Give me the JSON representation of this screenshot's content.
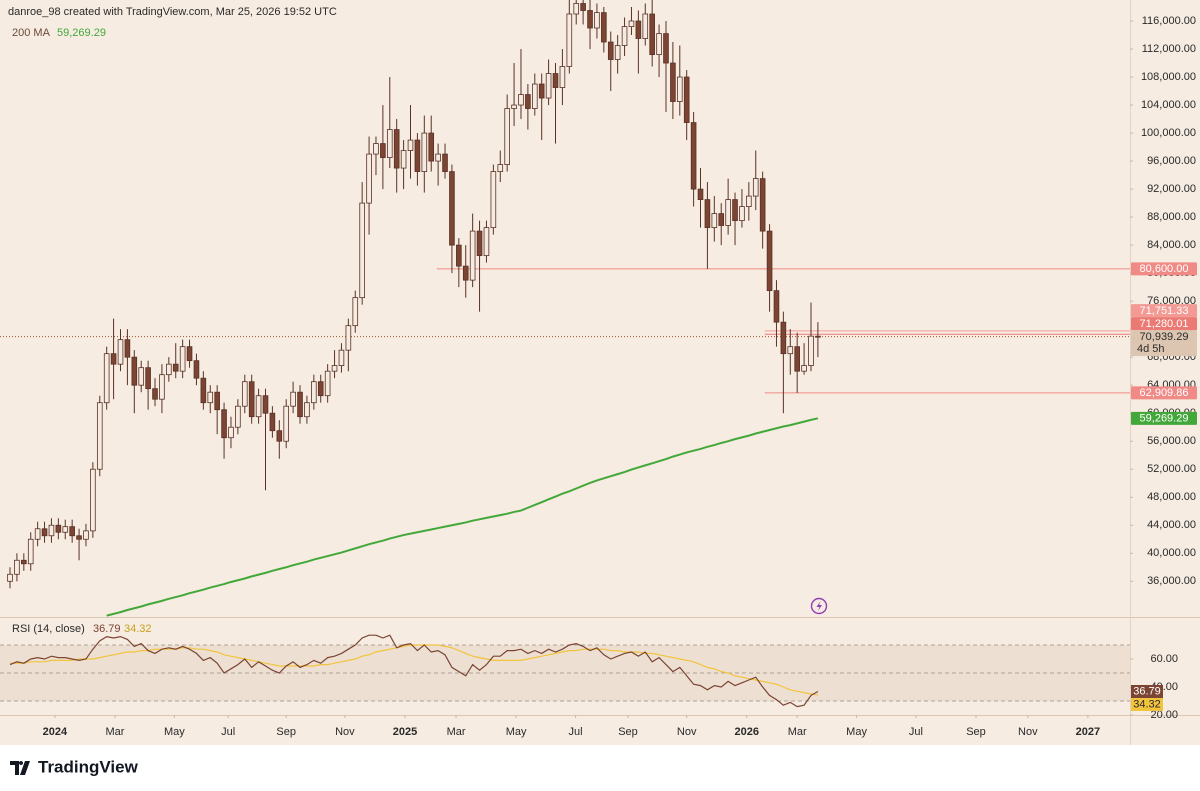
{
  "chart_data": {
    "type": "candlestick",
    "attribution": "danroe_98 created with TradingView.com, Mar 25, 2026 19:52 UTC",
    "categories": [
      null,
      null,
      null,
      null,
      null,
      null,
      null,
      null,
      null,
      null,
      null,
      null,
      null,
      null,
      null,
      null,
      null,
      null,
      null,
      null,
      null,
      null,
      null,
      null,
      null,
      null,
      null,
      null,
      null,
      null,
      null,
      null,
      null,
      null,
      null,
      null,
      null,
      null,
      null,
      null,
      null,
      null,
      null,
      null,
      null,
      null,
      null,
      null,
      null,
      null,
      null,
      null,
      null,
      null,
      null,
      null,
      null,
      null,
      null,
      null,
      null,
      null,
      null,
      null,
      null,
      null,
      null,
      null,
      null,
      null,
      null,
      null,
      null,
      null,
      null,
      null,
      null,
      null,
      null,
      null,
      null,
      null,
      null,
      null,
      null,
      null,
      null,
      null,
      null,
      null,
      null,
      null,
      null,
      null,
      null,
      null,
      null,
      null,
      null,
      null,
      null,
      null,
      null,
      null,
      null,
      null,
      null,
      null,
      null,
      null,
      null,
      null,
      null,
      null,
      null,
      null,
      null,
      null
    ],
    "xlim": [
      -1.45,
      162.2
    ],
    "xticks": [
      {
        "value": 6.5,
        "label": "2024"
      },
      {
        "value": 15.2,
        "label": "Mar"
      },
      {
        "value": 23.8,
        "label": "May"
      },
      {
        "value": 31.6,
        "label": "Jul"
      },
      {
        "value": 40.0,
        "label": "Sep"
      },
      {
        "value": 48.5,
        "label": "Nov"
      },
      {
        "value": 57.2,
        "label": "2025"
      },
      {
        "value": 64.6,
        "label": "Mar"
      },
      {
        "value": 73.3,
        "label": "May"
      },
      {
        "value": 81.9,
        "label": "Jul"
      },
      {
        "value": 89.5,
        "label": "Sep"
      },
      {
        "value": 98.0,
        "label": "Nov"
      },
      {
        "value": 106.7,
        "label": "2026"
      },
      {
        "value": 114.0,
        "label": "Mar"
      },
      {
        "value": 122.6,
        "label": "May"
      },
      {
        "value": 131.2,
        "label": "Jul"
      },
      {
        "value": 139.9,
        "label": "Sep"
      },
      {
        "value": 147.4,
        "label": "Nov"
      },
      {
        "value": 156.1,
        "label": "2027"
      }
    ],
    "ylim": [
      30900,
      119000
    ],
    "yticks": [
      {
        "value": 36000,
        "label": "36,000.00"
      },
      {
        "value": 40000,
        "label": "40,000.00"
      },
      {
        "value": 44000,
        "label": "44,000.00"
      },
      {
        "value": 48000,
        "label": "48,000.00"
      },
      {
        "value": 52000,
        "label": "52,000.00"
      },
      {
        "value": 56000,
        "label": "56,000.00"
      },
      {
        "value": 60000,
        "label": "60,000.00"
      },
      {
        "value": 64000,
        "label": "64,000.00"
      },
      {
        "value": 68000,
        "label": "68,000.00"
      },
      {
        "value": 72000,
        "label": "72,000.00"
      },
      {
        "value": 76000,
        "label": "76,000.00"
      },
      {
        "value": 80000,
        "label": "80,000.00"
      },
      {
        "value": 84000,
        "label": "84,000.00"
      },
      {
        "value": 88000,
        "label": "88,000.00"
      },
      {
        "value": 92000,
        "label": "92,000.00"
      },
      {
        "value": 96000,
        "label": "96,000.00"
      },
      {
        "value": 100000,
        "label": "100,000.00"
      },
      {
        "value": 104000,
        "label": "104,000.00"
      },
      {
        "value": 108000,
        "label": "108,000.00"
      },
      {
        "value": 112000,
        "label": "112,000.00"
      },
      {
        "value": 116000,
        "label": "116,000.00"
      }
    ],
    "grid": false,
    "up_color": "#f5ebe0",
    "down_color": "#7b4433",
    "wick_color": "#5a3126",
    "open": [
      36000,
      37000,
      39000,
      38500,
      42000,
      43500,
      42500,
      44000,
      43000,
      43800,
      42500,
      42000,
      43200,
      52000,
      61500,
      68500,
      67000,
      70500,
      68000,
      64000,
      66500,
      63500,
      62000,
      65500,
      67000,
      66000,
      69500,
      67500,
      65000,
      61500,
      63000,
      60500,
      56500,
      58000,
      61000,
      64500,
      59500,
      62500,
      60000,
      57500,
      56000,
      61000,
      63000,
      59500,
      61500,
      64500,
      62500,
      66000,
      66800,
      69000,
      72500,
      76500,
      90000,
      97000,
      98500,
      96500,
      100500,
      95000,
      97500,
      99000,
      94500,
      100000,
      96000,
      97000,
      94500,
      84000,
      81000,
      79000,
      86000,
      82500,
      86500,
      94500,
      95500,
      103500,
      104000,
      105500,
      103500,
      107000,
      105000,
      108500,
      106500,
      109500,
      117000,
      118500,
      117500,
      115000,
      117200,
      113000,
      110500,
      112500,
      115200,
      116000,
      113500,
      117000,
      111200,
      114200,
      110000,
      104500,
      108000,
      101500,
      92000,
      90500,
      86500,
      88500,
      86800,
      90500,
      87500,
      89500,
      91000,
      93500,
      86000,
      77500,
      73000,
      68500,
      69500,
      66000,
      66800,
      71000
    ],
    "high": [
      38000,
      40000,
      40000,
      43000,
      44500,
      44500,
      45000,
      45000,
      44800,
      44800,
      43500,
      44200,
      53000,
      62500,
      69500,
      73500,
      72000,
      72000,
      69000,
      67500,
      67500,
      65000,
      67000,
      68000,
      70000,
      70500,
      70500,
      68500,
      66000,
      64000,
      64000,
      61500,
      59500,
      62000,
      65500,
      65500,
      63500,
      63500,
      61000,
      59000,
      62000,
      64500,
      64000,
      62500,
      65500,
      65500,
      67000,
      69000,
      70000,
      73500,
      77500,
      93000,
      99500,
      99500,
      104000,
      108000,
      102000,
      99000,
      104000,
      100000,
      102500,
      102500,
      98500,
      98500,
      95500,
      85000,
      84000,
      88500,
      87500,
      87500,
      95500,
      97500,
      105500,
      110000,
      112000,
      107000,
      108500,
      108500,
      110500,
      110000,
      112000,
      119000,
      120000,
      120000,
      119000,
      118500,
      118000,
      114500,
      114000,
      116500,
      118000,
      117500,
      118500,
      120000,
      115500,
      116000,
      113000,
      112500,
      109000,
      103000,
      95000,
      93000,
      91000,
      90000,
      93500,
      91500,
      92000,
      93000,
      97500,
      94500,
      87000,
      79000,
      74500,
      72000,
      71500,
      70000,
      75800,
      73000
    ],
    "low": [
      35000,
      36000,
      37500,
      37500,
      41000,
      41500,
      41500,
      42000,
      42000,
      41500,
      39000,
      41000,
      42200,
      51000,
      60500,
      62000,
      66000,
      64000,
      60000,
      63000,
      60500,
      61000,
      60000,
      64500,
      65000,
      65000,
      66500,
      64000,
      60500,
      60000,
      57000,
      53500,
      55000,
      57000,
      60000,
      58500,
      58500,
      49000,
      56500,
      53500,
      55000,
      60000,
      58500,
      58500,
      60500,
      61500,
      61500,
      65000,
      65800,
      66000,
      71500,
      75500,
      85500,
      94000,
      92000,
      95000,
      91500,
      92000,
      93500,
      92500,
      91500,
      94500,
      92500,
      93500,
      80000,
      78000,
      76500,
      78000,
      74500,
      81500,
      85500,
      93000,
      94500,
      101000,
      102000,
      100500,
      102500,
      99000,
      104000,
      98500,
      104000,
      108500,
      115500,
      115500,
      112000,
      113500,
      111500,
      106000,
      108500,
      111000,
      114000,
      108500,
      112500,
      109500,
      108000,
      103000,
      102000,
      102500,
      99000,
      89500,
      86500,
      80600,
      84500,
      84000,
      85500,
      84000,
      86500,
      87500,
      89000,
      83500,
      74500,
      69500,
      60000,
      65500,
      62909.86,
      65500,
      66000,
      68000
    ],
    "close": [
      37000,
      39000,
      38500,
      42000,
      43500,
      42500,
      44000,
      43000,
      43800,
      42500,
      42000,
      43200,
      52000,
      61500,
      68500,
      67000,
      70500,
      68000,
      64000,
      66500,
      63500,
      62000,
      65500,
      67000,
      66000,
      69500,
      67500,
      65000,
      61500,
      63000,
      60500,
      56500,
      58000,
      61000,
      64500,
      59500,
      62500,
      60000,
      57500,
      56000,
      61000,
      63000,
      59500,
      61500,
      64500,
      62500,
      66000,
      66800,
      69000,
      72500,
      76500,
      90000,
      97000,
      98500,
      96500,
      100500,
      95000,
      97500,
      99000,
      94500,
      100000,
      96000,
      97000,
      94500,
      84000,
      81000,
      79000,
      86000,
      82500,
      86500,
      94500,
      95500,
      103500,
      104000,
      105500,
      103500,
      107000,
      105000,
      108500,
      106500,
      109500,
      117000,
      118500,
      117500,
      115000,
      117200,
      113000,
      110500,
      112500,
      115200,
      116000,
      113500,
      117000,
      111200,
      114200,
      110000,
      104500,
      108000,
      101500,
      92000,
      90500,
      86500,
      88500,
      86800,
      90500,
      87500,
      89500,
      91000,
      93500,
      86000,
      77500,
      73000,
      68500,
      69500,
      66000,
      66800,
      71000,
      70939.29
    ],
    "current": {
      "value": 70939.29,
      "label": "70,939.29",
      "countdown": "4d 5h",
      "color": "#a0522d"
    },
    "ma": {
      "name": "200 MA",
      "color": "#43a83a",
      "last": {
        "value": 59269.29,
        "label": "59,269.29"
      },
      "values": [
        null,
        null,
        null,
        null,
        null,
        null,
        null,
        null,
        null,
        null,
        null,
        null,
        null,
        null,
        31100,
        31350,
        31600,
        31900,
        32150,
        32400,
        32700,
        32950,
        33200,
        33500,
        33750,
        34000,
        34300,
        34550,
        34800,
        35100,
        35350,
        35600,
        35900,
        36150,
        36400,
        36700,
        36950,
        37200,
        37500,
        37750,
        38000,
        38300,
        38550,
        38800,
        39100,
        39350,
        39600,
        39850,
        40100,
        40400,
        40700,
        41000,
        41300,
        41550,
        41800,
        42100,
        42350,
        42600,
        42800,
        43000,
        43200,
        43400,
        43600,
        43800,
        44000,
        44200,
        44400,
        44650,
        44850,
        45050,
        45250,
        45450,
        45650,
        45900,
        46100,
        46500,
        46900,
        47300,
        47700,
        48100,
        48500,
        48850,
        49250,
        49650,
        50050,
        50400,
        50700,
        51000,
        51300,
        51600,
        51950,
        52250,
        52550,
        52850,
        53150,
        53450,
        53800,
        54100,
        54400,
        54650,
        54900,
        55200,
        55450,
        55750,
        56000,
        56300,
        56550,
        56800,
        57100,
        57350,
        57600,
        57850,
        58100,
        58300,
        58550,
        58800,
        59050,
        59269.29
      ]
    },
    "levels": [
      {
        "value": 80600,
        "label": "80,600.00",
        "color": "#f08a86",
        "from": 61.8
      },
      {
        "value": 71751.33,
        "label": "71,751.33",
        "color": "#f39a95",
        "from": 109.3
      },
      {
        "value": 71280.01,
        "label": "71,280.01",
        "color": "#ec7a74",
        "from": 109.3
      },
      {
        "value": 62909.86,
        "label": "62,909.86",
        "color": "#f08a86",
        "from": 109.3
      }
    ],
    "rsi": {
      "title": "RSI (14, close)",
      "color": "#7b4433",
      "ylim": [
        20,
        90
      ],
      "yticks": [
        {
          "value": 20,
          "label": "20.00"
        },
        {
          "value": 40,
          "label": "40.00"
        },
        {
          "value": 60,
          "label": "60.00"
        }
      ],
      "bands": [
        30,
        50,
        70
      ],
      "values": [
        56,
        58,
        57,
        60,
        61,
        60,
        62,
        61,
        61,
        60,
        59,
        60,
        67,
        73,
        76,
        75,
        76,
        74,
        69,
        71,
        66,
        64,
        67,
        68,
        67,
        69,
        67,
        64,
        59,
        61,
        57,
        50,
        53,
        56,
        60,
        54,
        58,
        55,
        52,
        50,
        55,
        58,
        54,
        56,
        59,
        57,
        61,
        62,
        64,
        67,
        70,
        75,
        77,
        77,
        75,
        77,
        68,
        70,
        71,
        66,
        70,
        65,
        66,
        63,
        54,
        51,
        48,
        56,
        52,
        56,
        62,
        62,
        66,
        66,
        67,
        64,
        66,
        64,
        67,
        65,
        67,
        70,
        71,
        69,
        66,
        68,
        63,
        60,
        62,
        64,
        65,
        62,
        65,
        58,
        61,
        56,
        51,
        54,
        48,
        42,
        41,
        38,
        41,
        40,
        44,
        41,
        43,
        45,
        47,
        40,
        34,
        31,
        27,
        29,
        26,
        27,
        34,
        36.79
      ],
      "ma": {
        "color": "#f2c33d",
        "values": [
          57,
          57,
          57,
          58,
          58,
          58,
          59,
          59,
          59,
          59,
          60,
          60,
          60,
          61,
          62,
          63,
          64,
          65,
          65,
          66,
          66,
          67,
          67,
          67,
          67,
          68,
          68,
          67,
          67,
          66,
          65,
          63,
          62,
          61,
          60,
          59,
          58,
          57,
          56,
          55,
          55,
          55,
          55,
          55,
          55,
          56,
          56,
          57,
          58,
          59,
          60,
          62,
          63,
          65,
          66,
          67,
          68,
          69,
          70,
          70,
          70,
          70,
          70,
          69,
          68,
          66,
          64,
          62,
          61,
          60,
          59,
          59,
          59,
          59,
          59,
          60,
          61,
          62,
          63,
          64,
          65,
          66,
          66,
          67,
          67,
          67,
          67,
          66,
          66,
          65,
          65,
          65,
          64,
          64,
          63,
          62,
          61,
          60,
          59,
          58,
          56,
          54,
          53,
          51,
          50,
          48,
          47,
          46,
          45,
          44,
          43,
          42,
          40,
          38,
          37,
          36,
          35,
          34.32
        ]
      }
    }
  },
  "brand": "TradingView"
}
